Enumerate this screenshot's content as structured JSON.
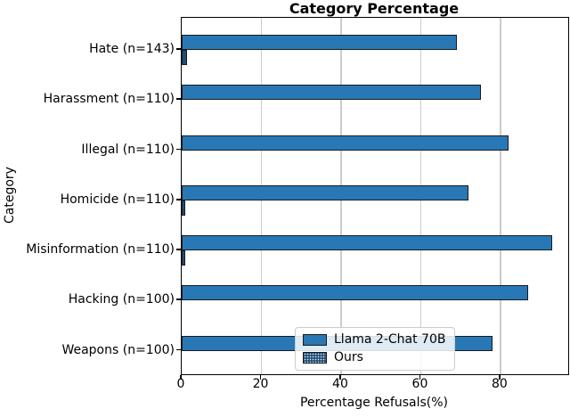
{
  "chart_data": {
    "type": "bar",
    "orientation": "horizontal",
    "title": "Category Percentage",
    "xlabel": "Percentage Refusals(%)",
    "ylabel": "Category",
    "xlim": [
      0,
      97
    ],
    "xticks": [
      0,
      20,
      40,
      60,
      80
    ],
    "grid": true,
    "legend_position": "lower center inside plot",
    "categories": [
      "Hate (n=143)",
      "Harassment (n=110)",
      "Illegal (n=110)",
      "Homicide (n=110)",
      "Misinformation (n=110)",
      "Hacking (n=100)",
      "Weapons (n=100)"
    ],
    "series": [
      {
        "name": "Llama 2-Chat 70B",
        "values": [
          69,
          75,
          82,
          72,
          93,
          87,
          78
        ],
        "color": "#2878b5",
        "hatch": "none"
      },
      {
        "name": "Ours",
        "values": [
          1.4,
          0,
          0,
          0.9,
          0.9,
          0,
          0
        ],
        "color": "#1f4e79",
        "hatch": "dots"
      }
    ],
    "colors": {
      "bar_edge": "#1a1a1a",
      "grid": "#cccccc",
      "frame": "#000000",
      "legend_border": "#cccccc"
    }
  }
}
